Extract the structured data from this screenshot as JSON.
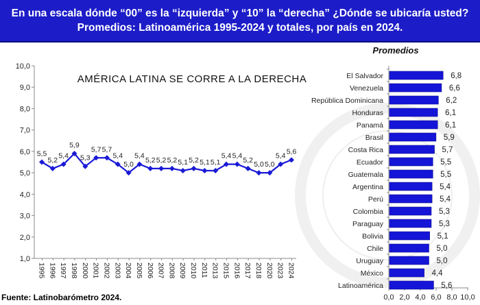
{
  "header": {
    "line1": "En una escala dónde “00” es la “izquierda” y “10” la “derecha” ¿Dónde se ubicaría usted?",
    "line2": "Promedios: Latinoamérica 1995-2024 y totales, por país en 2024."
  },
  "source": "Fuente: Latinobarómetro 2024.",
  "colors": {
    "banner": "#1c1cc8",
    "series": "#1a1ad6",
    "bars": "#1515d8"
  },
  "chart_data": [
    {
      "type": "line",
      "title": "AMÉRICA LATINA SE CORRE A LA DERECHA",
      "x": [
        "1995",
        "1996",
        "1997",
        "1998",
        "2000",
        "2001",
        "2002",
        "2003",
        "2004",
        "2005",
        "2006",
        "2007",
        "2008",
        "2009",
        "2010",
        "2011",
        "2013",
        "2015",
        "2016",
        "2017",
        "2018",
        "2020",
        "2023",
        "2024"
      ],
      "values": [
        5.5,
        5.2,
        5.4,
        5.9,
        5.3,
        5.7,
        5.7,
        5.4,
        5.0,
        5.4,
        5.2,
        5.2,
        5.2,
        5.1,
        5.2,
        5.1,
        5.1,
        5.4,
        5.4,
        5.2,
        5.0,
        5.0,
        5.4,
        5.6
      ],
      "data_labels": [
        "5,5",
        "5,2",
        "5,4",
        "5,9",
        "5,3",
        "5,7",
        "5,7",
        "5,4",
        "5,0",
        "5,4",
        "5,2",
        "5,2",
        "5,2",
        "5,1",
        "5,2",
        "5,1",
        "5,1",
        "5,4",
        "5,4",
        "5,2",
        "5,0",
        "5,0",
        "5,4",
        "5,6"
      ],
      "ylim": [
        1,
        10
      ],
      "yticks": [
        "1,0",
        "2,0",
        "3,0",
        "4,0",
        "5,0",
        "6,0",
        "7,0",
        "8,0",
        "9,0",
        "10,0"
      ],
      "grid": false,
      "marker": "diamond"
    },
    {
      "type": "bar",
      "orientation": "horizontal",
      "title": "Promedios",
      "categories": [
        "El Salvador",
        "Venezuela",
        "República Dominicana",
        "Honduras",
        "Panamá",
        "Brasil",
        "Costa Rica",
        "Ecuador",
        "Guatemala",
        "Argentina",
        "Perú",
        "Colombia",
        "Paraguay",
        "Bolivia",
        "Chile",
        "Uruguay",
        "México",
        "Latinoamérica"
      ],
      "values": [
        6.8,
        6.6,
        6.2,
        6.1,
        6.1,
        5.9,
        5.7,
        5.5,
        5.5,
        5.4,
        5.4,
        5.3,
        5.3,
        5.1,
        5.0,
        5.0,
        4.4,
        5.6
      ],
      "data_labels": [
        "6,8",
        "6,6",
        "6,2",
        "6,1",
        "6,1",
        "5,9",
        "5,7",
        "5,5",
        "5,5",
        "5,4",
        "5,4",
        "5,3",
        "5,3",
        "5,1",
        "5,0",
        "5,0",
        "4,4",
        "5,6"
      ],
      "xlim": [
        0,
        10
      ],
      "xticks": [
        "0,0",
        "2,0",
        "4,0",
        "6,0",
        "8,0",
        "10,0"
      ]
    }
  ]
}
